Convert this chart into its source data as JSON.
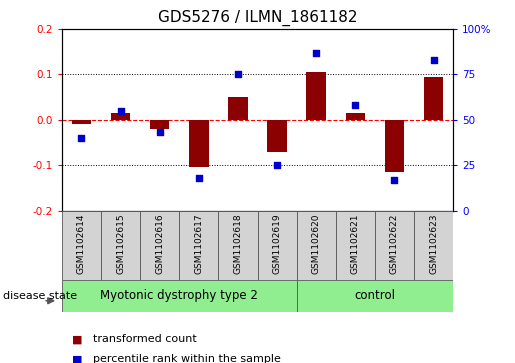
{
  "title": "GDS5276 / ILMN_1861182",
  "samples": [
    "GSM1102614",
    "GSM1102615",
    "GSM1102616",
    "GSM1102617",
    "GSM1102618",
    "GSM1102619",
    "GSM1102620",
    "GSM1102621",
    "GSM1102622",
    "GSM1102623"
  ],
  "transformed_count": [
    -0.01,
    0.015,
    -0.02,
    -0.105,
    0.05,
    -0.07,
    0.105,
    0.015,
    -0.115,
    0.095
  ],
  "percentile_rank": [
    40,
    55,
    43,
    18,
    75,
    25,
    87,
    58,
    17,
    83
  ],
  "ylim_left": [
    -0.2,
    0.2
  ],
  "ylim_right": [
    0,
    100
  ],
  "yticks_left": [
    -0.2,
    -0.1,
    0.0,
    0.1,
    0.2
  ],
  "yticks_right": [
    0,
    25,
    50,
    75,
    100
  ],
  "bar_color": "#8B0000",
  "dot_color": "#0000CD",
  "sample_box_color": "#D3D3D3",
  "disease_groups": [
    {
      "label": "Myotonic dystrophy type 2",
      "start": 0,
      "end": 6,
      "color": "#90EE90"
    },
    {
      "label": "control",
      "start": 6,
      "end": 10,
      "color": "#90EE90"
    }
  ],
  "disease_state_label": "disease state",
  "legend_items": [
    {
      "label": "transformed count",
      "color": "#8B0000"
    },
    {
      "label": "percentile rank within the sample",
      "color": "#0000CD"
    }
  ],
  "background_color": "#ffffff",
  "plot_bg": "#ffffff",
  "zero_line_color": "#FF0000",
  "dotted_line_color": "#000000",
  "title_fontsize": 11,
  "tick_fontsize": 7.5,
  "sample_fontsize": 6.5,
  "legend_fontsize": 8,
  "disease_fontsize": 8.5
}
